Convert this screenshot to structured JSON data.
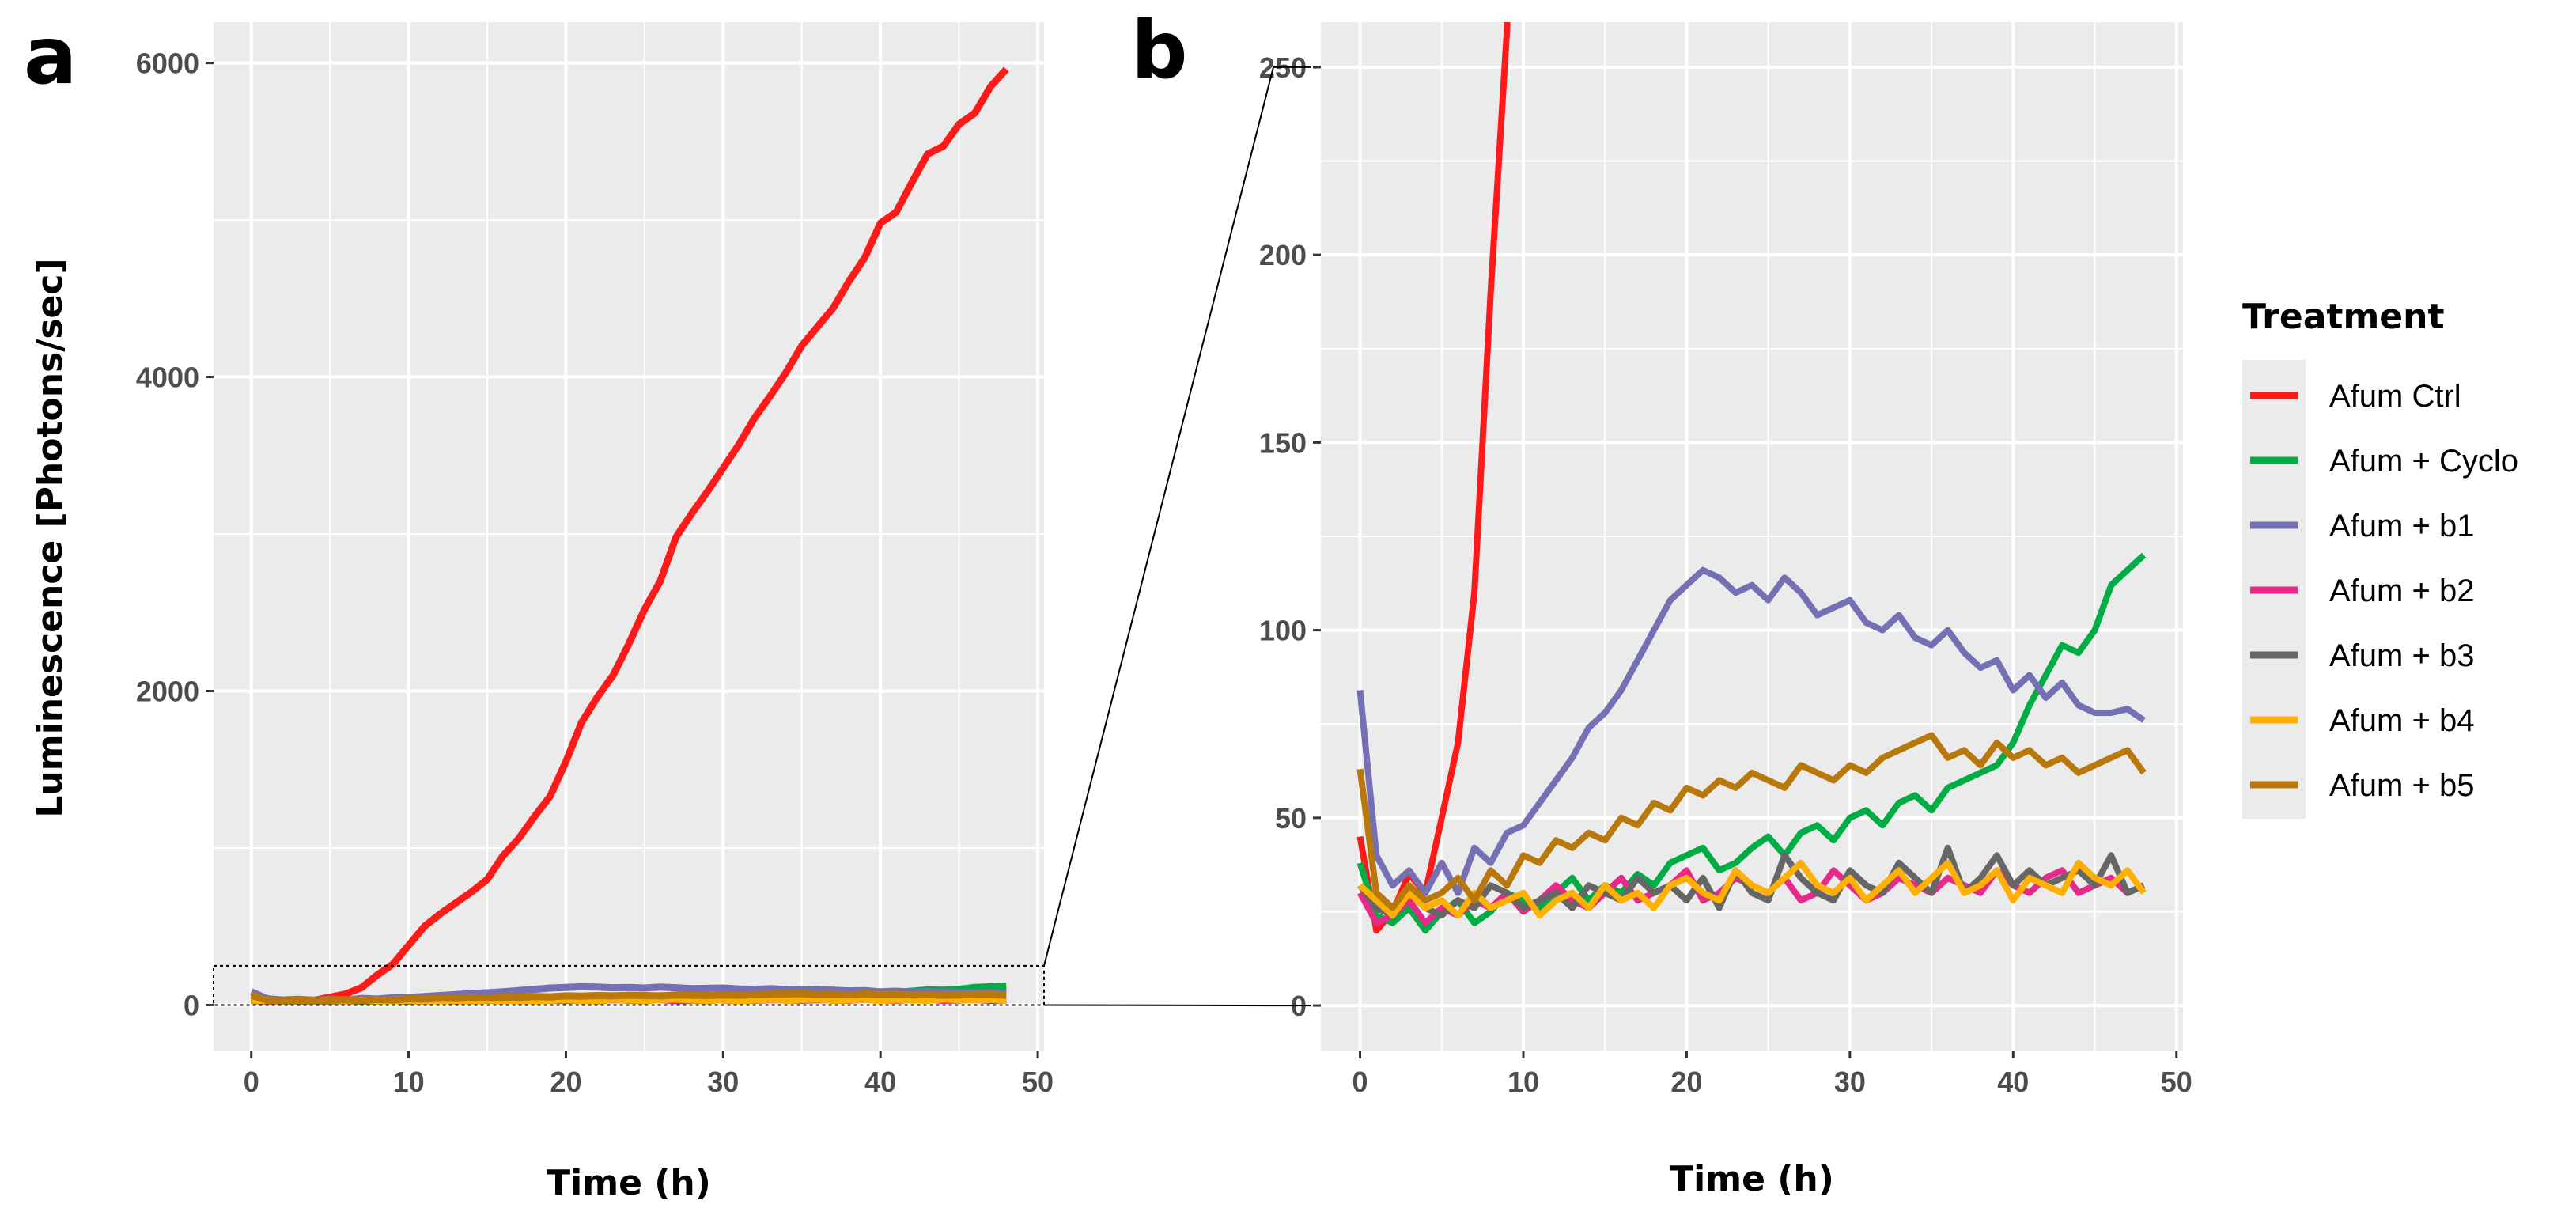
{
  "chart_data": [
    {
      "panel": "a",
      "type": "line",
      "xlabel": "Time (h)",
      "ylabel": "Luminescence [Photons/sec]",
      "xlim": [
        -2.4,
        50.4
      ],
      "ylim": [
        -290,
        6260
      ],
      "xticks": [
        0,
        10,
        20,
        30,
        40,
        50
      ],
      "yticks": [
        0,
        2000,
        4000,
        6000
      ],
      "xtick_labels": [
        "0",
        "10",
        "20",
        "30",
        "40",
        "50"
      ],
      "ytick_labels": [
        "0",
        "2000",
        "4000",
        "6000"
      ],
      "grid": true,
      "zoom_box": {
        "x": [
          -2.4,
          50.4
        ],
        "y": [
          0,
          250
        ]
      }
    },
    {
      "panel": "b",
      "type": "line",
      "xlabel": "Time (h)",
      "ylabel": "",
      "xlim": [
        -2.4,
        50.4
      ],
      "ylim": [
        -12,
        262
      ],
      "xticks": [
        0,
        10,
        20,
        30,
        40,
        50
      ],
      "yticks": [
        0,
        50,
        100,
        150,
        200,
        250
      ],
      "xtick_labels": [
        "0",
        "10",
        "20",
        "30",
        "40",
        "50"
      ],
      "ytick_labels": [
        "0",
        "50",
        "100",
        "150",
        "200",
        "250"
      ],
      "grid": true
    }
  ],
  "legend": {
    "title": "Treatment",
    "items": [
      {
        "key": "ctrl",
        "label": "Afum Ctrl",
        "color": "#ff1a1a"
      },
      {
        "key": "cyclo",
        "label": "Afum + Cyclo",
        "color": "#00ad45"
      },
      {
        "key": "b1",
        "label": "Afum + b1",
        "color": "#7570b3"
      },
      {
        "key": "b2",
        "label": "Afum + b2",
        "color": "#e7298a"
      },
      {
        "key": "b3",
        "label": "Afum + b3",
        "color": "#666666"
      },
      {
        "key": "b4",
        "label": "Afum + b4",
        "color": "#ffb000"
      },
      {
        "key": "b5",
        "label": "Afum + b5",
        "color": "#b8780c"
      }
    ]
  },
  "series": {
    "x": [
      0,
      1,
      2,
      3,
      4,
      5,
      6,
      7,
      8,
      9,
      10,
      11,
      12,
      13,
      14,
      15,
      16,
      17,
      18,
      19,
      20,
      21,
      22,
      23,
      24,
      25,
      26,
      27,
      28,
      29,
      30,
      31,
      32,
      33,
      34,
      35,
      36,
      37,
      38,
      39,
      40,
      41,
      42,
      43,
      44,
      45,
      46,
      47,
      48
    ],
    "ctrl": [
      45,
      20,
      25,
      35,
      30,
      50,
      70,
      110,
      190,
      260,
      380,
      500,
      580,
      650,
      720,
      800,
      950,
      1060,
      1200,
      1330,
      1550,
      1800,
      1960,
      2100,
      2300,
      2520,
      2700,
      2980,
      3130,
      3270,
      3420,
      3570,
      3740,
      3880,
      4030,
      4200,
      4320,
      4440,
      4610,
      4760,
      4980,
      5050,
      5240,
      5420,
      5470,
      5610,
      5680,
      5850,
      5960
    ],
    "cyclo": [
      38,
      24,
      22,
      26,
      20,
      25,
      28,
      22,
      25,
      30,
      28,
      26,
      30,
      34,
      28,
      32,
      30,
      35,
      32,
      38,
      40,
      42,
      36,
      38,
      42,
      45,
      40,
      46,
      48,
      44,
      50,
      52,
      48,
      54,
      56,
      52,
      58,
      60,
      62,
      64,
      70,
      80,
      88,
      96,
      94,
      100,
      112,
      116,
      120
    ],
    "b1": [
      84,
      40,
      32,
      36,
      30,
      38,
      30,
      42,
      38,
      46,
      48,
      54,
      60,
      66,
      74,
      78,
      84,
      92,
      100,
      108,
      112,
      116,
      114,
      110,
      112,
      108,
      114,
      110,
      104,
      106,
      108,
      102,
      100,
      104,
      98,
      96,
      100,
      94,
      90,
      92,
      84,
      88,
      82,
      86,
      80,
      78,
      78,
      79,
      76
    ],
    "b2": [
      30,
      22,
      24,
      28,
      22,
      26,
      24,
      28,
      26,
      30,
      25,
      28,
      32,
      28,
      26,
      30,
      34,
      28,
      30,
      32,
      36,
      28,
      30,
      34,
      32,
      30,
      34,
      28,
      30,
      36,
      32,
      28,
      30,
      34,
      32,
      30,
      34,
      32,
      30,
      36,
      32,
      30,
      34,
      36,
      30,
      32,
      34,
      30,
      32
    ],
    "b3": [
      32,
      26,
      24,
      30,
      26,
      24,
      28,
      26,
      32,
      30,
      26,
      28,
      30,
      26,
      32,
      30,
      28,
      34,
      30,
      32,
      28,
      34,
      26,
      36,
      30,
      28,
      40,
      34,
      30,
      28,
      36,
      32,
      30,
      38,
      34,
      30,
      42,
      30,
      34,
      40,
      32,
      36,
      32,
      34,
      36,
      32,
      40,
      30,
      32
    ],
    "b4": [
      32,
      28,
      24,
      30,
      26,
      28,
      24,
      30,
      26,
      28,
      30,
      24,
      28,
      30,
      26,
      32,
      28,
      30,
      26,
      32,
      34,
      30,
      28,
      36,
      32,
      30,
      34,
      38,
      32,
      30,
      34,
      28,
      32,
      36,
      30,
      34,
      38,
      30,
      32,
      36,
      28,
      34,
      32,
      30,
      38,
      34,
      32,
      36,
      30
    ],
    "b5": [
      63,
      30,
      26,
      32,
      28,
      30,
      34,
      28,
      36,
      32,
      40,
      38,
      44,
      42,
      46,
      44,
      50,
      48,
      54,
      52,
      58,
      56,
      60,
      58,
      62,
      60,
      58,
      64,
      62,
      60,
      64,
      62,
      66,
      68,
      70,
      72,
      66,
      68,
      64,
      70,
      66,
      68,
      64,
      66,
      62,
      64,
      66,
      68,
      62
    ]
  }
}
